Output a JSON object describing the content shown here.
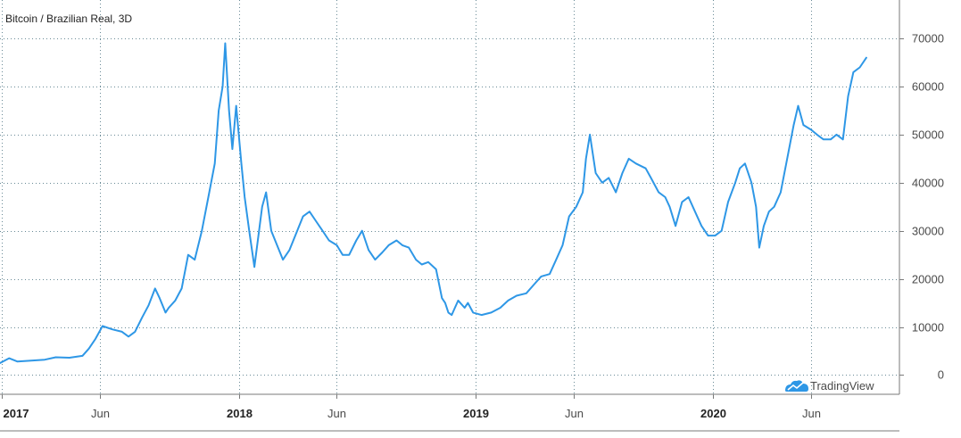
{
  "chart_data": {
    "type": "line",
    "title": "Bitcoin / Brazilian Real, 3D",
    "xlabel": "",
    "ylabel": "",
    "ylim": [
      -4000,
      78000
    ],
    "xlim": [
      "2016-12-29",
      "2020-10-15"
    ],
    "grid": true,
    "y_axis_position": "right",
    "y_ticks": [
      0,
      10000,
      20000,
      30000,
      40000,
      50000,
      60000,
      70000
    ],
    "x_ticks": [
      {
        "label": "2017",
        "date": "2017-01-01",
        "major": true
      },
      {
        "label": "Jun",
        "date": "2017-06-01",
        "major": false
      },
      {
        "label": "2018",
        "date": "2018-01-01",
        "major": true
      },
      {
        "label": "Jun",
        "date": "2018-06-01",
        "major": false
      },
      {
        "label": "2019",
        "date": "2019-01-01",
        "major": true
      },
      {
        "label": "Jun",
        "date": "2019-06-01",
        "major": false
      },
      {
        "label": "2020",
        "date": "2020-01-01",
        "major": true
      },
      {
        "label": "Jun",
        "date": "2020-06-01",
        "major": false
      }
    ],
    "watermark": "TradingView",
    "line_color": "#2e97e6",
    "series": [
      {
        "x": [
          "2016-12-29",
          "2017-01-12",
          "2017-01-25",
          "2017-02-15",
          "2017-03-08",
          "2017-03-25",
          "2017-04-15",
          "2017-05-05",
          "2017-05-15",
          "2017-05-25",
          "2017-06-05",
          "2017-06-20",
          "2017-07-05",
          "2017-07-15",
          "2017-07-25",
          "2017-08-05",
          "2017-08-15",
          "2017-08-25",
          "2017-09-01",
          "2017-09-10",
          "2017-09-15",
          "2017-09-25",
          "2017-10-05",
          "2017-10-15",
          "2017-10-25",
          "2017-11-05",
          "2017-11-15",
          "2017-11-25",
          "2017-12-01",
          "2017-12-07",
          "2017-12-11",
          "2017-12-17",
          "2017-12-22",
          "2017-12-28",
          "2018-01-05",
          "2018-01-10",
          "2018-01-17",
          "2018-01-25",
          "2018-02-06",
          "2018-02-12",
          "2018-02-20",
          "2018-03-01",
          "2018-03-10",
          "2018-03-20",
          "2018-04-01",
          "2018-04-10",
          "2018-04-20",
          "2018-04-30",
          "2018-05-10",
          "2018-05-20",
          "2018-06-01",
          "2018-06-10",
          "2018-06-20",
          "2018-07-01",
          "2018-07-10",
          "2018-07-20",
          "2018-07-30",
          "2018-08-10",
          "2018-08-20",
          "2018-09-01",
          "2018-09-10",
          "2018-09-20",
          "2018-10-01",
          "2018-10-10",
          "2018-10-20",
          "2018-11-01",
          "2018-11-10",
          "2018-11-15",
          "2018-11-20",
          "2018-11-25",
          "2018-12-05",
          "2018-12-15",
          "2018-12-20",
          "2018-12-28",
          "2019-01-10",
          "2019-01-25",
          "2019-02-08",
          "2019-02-20",
          "2019-03-05",
          "2019-03-20",
          "2019-04-02",
          "2019-04-12",
          "2019-04-25",
          "2019-05-05",
          "2019-05-15",
          "2019-05-25",
          "2019-06-05",
          "2019-06-15",
          "2019-06-20",
          "2019-06-26",
          "2019-07-05",
          "2019-07-15",
          "2019-07-25",
          "2019-08-05",
          "2019-08-15",
          "2019-08-25",
          "2019-09-05",
          "2019-09-20",
          "2019-09-28",
          "2019-10-10",
          "2019-10-20",
          "2019-10-27",
          "2019-11-05",
          "2019-11-15",
          "2019-11-25",
          "2019-12-05",
          "2019-12-15",
          "2019-12-25",
          "2020-01-05",
          "2020-01-15",
          "2020-01-25",
          "2020-02-05",
          "2020-02-12",
          "2020-02-20",
          "2020-03-01",
          "2020-03-08",
          "2020-03-13",
          "2020-03-20",
          "2020-03-28",
          "2020-04-05",
          "2020-04-15",
          "2020-04-25",
          "2020-05-05",
          "2020-05-12",
          "2020-05-20",
          "2020-06-01",
          "2020-06-10",
          "2020-06-20",
          "2020-07-01",
          "2020-07-10",
          "2020-07-20",
          "2020-07-28",
          "2020-08-05",
          "2020-08-15",
          "2020-08-25"
        ],
        "values": [
          2500,
          3500,
          2800,
          3000,
          3200,
          3700,
          3600,
          4000,
          5500,
          7500,
          10200,
          9500,
          9000,
          8000,
          9000,
          12000,
          14500,
          18000,
          16000,
          13000,
          14000,
          15500,
          18000,
          25000,
          24000,
          30000,
          37000,
          44000,
          55000,
          60000,
          69000,
          55000,
          47000,
          56000,
          44000,
          37000,
          30000,
          22500,
          35000,
          38000,
          30000,
          27000,
          24000,
          26000,
          30000,
          33000,
          34000,
          32000,
          30000,
          28000,
          27000,
          25000,
          25000,
          28000,
          30000,
          26000,
          24000,
          25500,
          27000,
          28000,
          27000,
          26500,
          24000,
          23000,
          23500,
          22000,
          16000,
          15000,
          13000,
          12500,
          15500,
          14000,
          15000,
          13000,
          12500,
          13000,
          14000,
          15500,
          16500,
          17000,
          19000,
          20500,
          21000,
          24000,
          27000,
          33000,
          35000,
          38000,
          45000,
          50000,
          42000,
          40000,
          41000,
          38000,
          42000,
          45000,
          44000,
          43000,
          41000,
          38000,
          37000,
          35000,
          31000,
          36000,
          37000,
          34000,
          31000,
          29000,
          29000,
          30000,
          36000,
          40000,
          43000,
          44000,
          40000,
          35000,
          26500,
          31000,
          34000,
          35000,
          38000,
          45000,
          52000,
          56000,
          52000,
          51000,
          50000,
          49000,
          49000,
          50000,
          49000,
          58000,
          63000,
          64000,
          66000
        ]
      }
    ]
  }
}
